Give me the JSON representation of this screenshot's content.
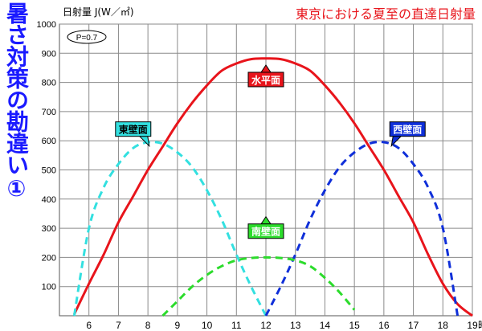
{
  "side_title": "暑さ対策の勘違い①",
  "chart_data": {
    "type": "line",
    "title": "東京における夏至の直達日射量",
    "ylabel": "日射量 J(W／㎡)",
    "xlabel": "時",
    "annotation": "P=0.7",
    "xlim": [
      5,
      19
    ],
    "ylim": [
      0,
      1000
    ],
    "x_ticks": [
      6,
      7,
      8,
      9,
      10,
      11,
      12,
      13,
      14,
      15,
      16,
      17,
      18,
      19
    ],
    "y_ticks": [
      100,
      200,
      300,
      400,
      500,
      600,
      700,
      800,
      900,
      1000
    ],
    "grid": true,
    "series": [
      {
        "name": "水平面",
        "color": "#e8141b",
        "style": "solid",
        "label_at": [
          12,
          810
        ],
        "x": [
          5.5,
          6,
          6.5,
          7,
          7.5,
          8,
          8.5,
          9,
          9.5,
          10,
          10.5,
          11,
          11.5,
          12,
          12.5,
          13,
          13.5,
          14,
          14.5,
          15,
          15.5,
          16,
          16.5,
          17,
          17.5,
          18,
          18.5,
          19
        ],
        "y": [
          5,
          110,
          210,
          320,
          410,
          500,
          580,
          660,
          730,
          790,
          840,
          865,
          880,
          882,
          880,
          865,
          840,
          790,
          730,
          660,
          580,
          500,
          410,
          320,
          210,
          110,
          40,
          0
        ]
      },
      {
        "name": "東壁面",
        "color": "#33e0e0",
        "style": "dashed",
        "label_at": [
          7.5,
          640
        ],
        "x": [
          5.5,
          6,
          6.5,
          7,
          7.5,
          8,
          8.5,
          9,
          9.5,
          10,
          10.5,
          11,
          11.5,
          12
        ],
        "y": [
          0,
          300,
          440,
          520,
          575,
          595,
          590,
          560,
          510,
          430,
          330,
          210,
          100,
          0
        ]
      },
      {
        "name": "西壁面",
        "color": "#0f2fd9",
        "style": "dashed",
        "label_at": [
          16.8,
          640
        ],
        "x": [
          12,
          12.5,
          13,
          13.5,
          14,
          14.5,
          15,
          15.5,
          16,
          16.5,
          17,
          17.5,
          18,
          18.5
        ],
        "y": [
          0,
          100,
          210,
          330,
          430,
          510,
          560,
          590,
          595,
          575,
          520,
          440,
          300,
          0
        ]
      },
      {
        "name": "南壁面",
        "color": "#2cdc2c",
        "style": "dashed",
        "label_at": [
          12,
          290
        ],
        "x": [
          8.5,
          9,
          9.5,
          10,
          10.5,
          11,
          11.5,
          12,
          12.5,
          13,
          13.5,
          14,
          14.5,
          15
        ],
        "y": [
          0,
          50,
          100,
          140,
          170,
          190,
          198,
          200,
          198,
          190,
          170,
          130,
          80,
          20
        ]
      }
    ]
  }
}
